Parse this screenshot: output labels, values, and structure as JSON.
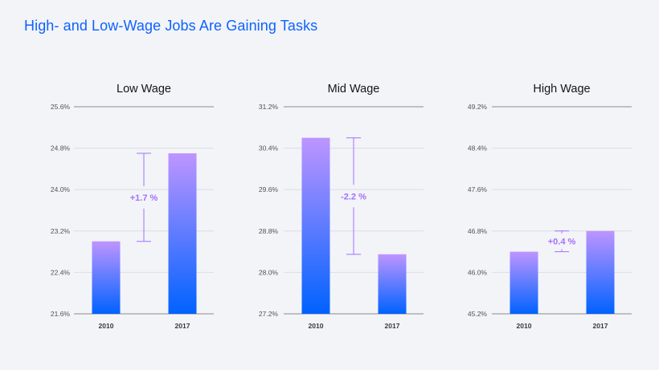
{
  "title": "High- and Low-Wage Jobs Are Gaining Tasks",
  "colors": {
    "title": "#0f62fe",
    "bar_top": "#be95ff",
    "bar_bottom": "#0062ff",
    "annotation": "#a56eff"
  },
  "chart_data": [
    {
      "type": "bar",
      "title": "Low Wage",
      "categories": [
        "2010",
        "2017"
      ],
      "values": [
        23.0,
        24.7
      ],
      "ylim": [
        21.6,
        25.6
      ],
      "yticks": [
        21.6,
        22.4,
        23.2,
        24.0,
        24.8,
        25.6
      ],
      "ytick_labels": [
        "21.6%",
        "22.4%",
        "23.2%",
        "24.0%",
        "24.8%",
        "25.6%"
      ],
      "annotation": "+1.7 %",
      "grid": true
    },
    {
      "type": "bar",
      "title": "Mid Wage",
      "categories": [
        "2010",
        "2017"
      ],
      "values": [
        30.6,
        28.35
      ],
      "ylim": [
        27.2,
        31.2
      ],
      "yticks": [
        27.2,
        28.0,
        28.8,
        29.6,
        30.4,
        31.2
      ],
      "ytick_labels": [
        "27.2%",
        "28.0%",
        "28.8%",
        "29.6%",
        "30.4%",
        "31.2%"
      ],
      "annotation": "-2.2 %",
      "grid": true
    },
    {
      "type": "bar",
      "title": "High Wage",
      "categories": [
        "2010",
        "2017"
      ],
      "values": [
        46.4,
        46.8
      ],
      "ylim": [
        45.2,
        49.2
      ],
      "yticks": [
        45.2,
        46.0,
        46.8,
        47.6,
        48.4,
        49.2
      ],
      "ytick_labels": [
        "45.2%",
        "46.0%",
        "46.8%",
        "47.6%",
        "48.4%",
        "49.2%"
      ],
      "annotation": "+0.4 %",
      "grid": true
    }
  ]
}
